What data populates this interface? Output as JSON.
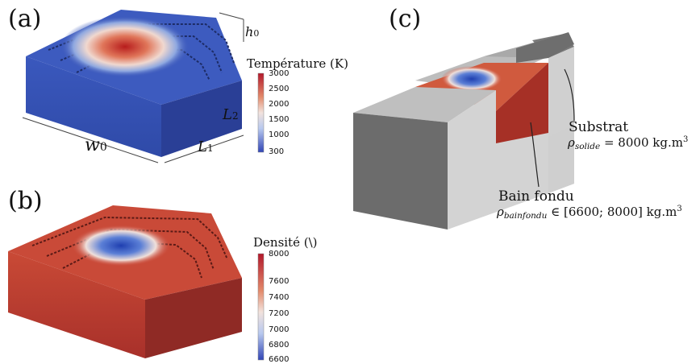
{
  "panels": {
    "a": {
      "label": "(a)",
      "dims": {
        "w": "w",
        "w_sub": "0",
        "L1": "L",
        "L1_sub": "1",
        "L2": "L",
        "L2_sub": "2",
        "h": "h",
        "h_sub": "0"
      },
      "colorbar": {
        "title": "Température (K)",
        "ticks": [
          "3000",
          "2500",
          "2000",
          "1500",
          "1000",
          "300"
        ]
      }
    },
    "b": {
      "label": "(b)",
      "colorbar": {
        "title": "Densité (\\)",
        "ticks": [
          "8000",
          "7600",
          "7400",
          "7200",
          "7000",
          "6800",
          "6600"
        ]
      }
    },
    "c": {
      "label": "(c)",
      "substrat": {
        "title": "Substrat",
        "rho": "ρ",
        "sub": "solide",
        "relation": " = 8000 kg.m",
        "exp": "3"
      },
      "bain": {
        "title": "Bain fondu",
        "rho": "ρ",
        "sub": "bainfondu",
        "relation": " ∈ [6600; 8000] kg.m",
        "exp": "3"
      }
    }
  },
  "colors": {
    "cold_blue": "#3a55b8",
    "hot_red": "#c8403a",
    "density_red": "#b8362e",
    "gray_light": "#c9c9c9",
    "gray_dark": "#6f6f6f"
  }
}
